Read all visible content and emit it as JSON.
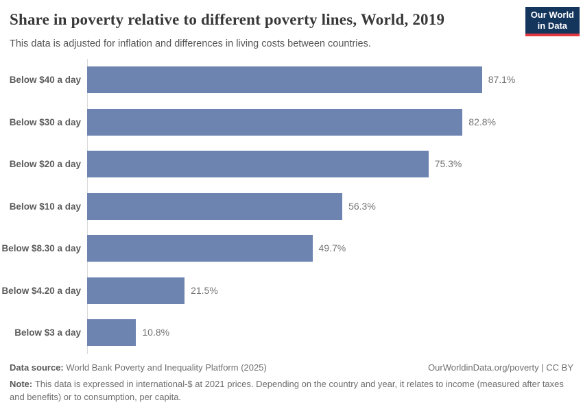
{
  "header": {
    "title": "Share in poverty relative to different poverty lines, World, 2019",
    "subtitle": "This data is adjusted for inflation and differences in living costs between countries."
  },
  "logo": {
    "line1": "Our World",
    "line2": "in Data",
    "bg_color": "#14355c",
    "accent_color": "#e0383e"
  },
  "chart_data": {
    "type": "bar",
    "orientation": "horizontal",
    "title": "Share in poverty relative to different poverty lines, World, 2019",
    "categories": [
      "Below $40 a day",
      "Below $30 a day",
      "Below $20 a day",
      "Below $10 a day",
      "Below $8.30 a day",
      "Below $4.20 a day",
      "Below $3 a day"
    ],
    "values": [
      87.1,
      82.8,
      75.3,
      56.3,
      49.7,
      21.5,
      10.8
    ],
    "value_labels": [
      "87.1%",
      "82.8%",
      "75.3%",
      "56.3%",
      "49.7%",
      "21.5%",
      "10.8%"
    ],
    "xlabel": "",
    "ylabel": "",
    "xlim": [
      0,
      100
    ],
    "grid": false,
    "legend": false,
    "bar_color": "#6d84b1",
    "axis_line_color": "#d9d9d9"
  },
  "footer": {
    "source_label": "Data source: ",
    "source_text": "World Bank Poverty and Inequality Platform (2025)",
    "attribution": "OurWorldinData.org/poverty | CC BY",
    "note_label": "Note: ",
    "note_text": "This data is expressed in international-$ at 2021 prices. Depending on the country and year, it relates to income (measured after taxes and benefits) or to consumption, per capita."
  }
}
